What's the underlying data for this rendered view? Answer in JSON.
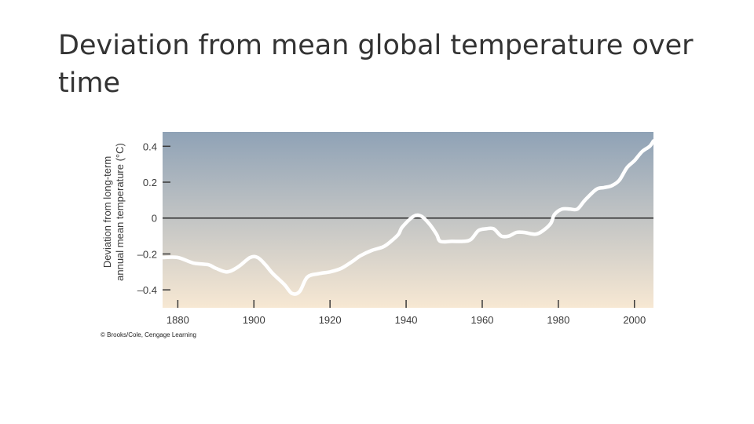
{
  "slide": {
    "title": "Deviation from mean global temperature over time"
  },
  "chart_data": {
    "type": "line",
    "title": "",
    "xlabel": "",
    "ylabel_lines": [
      "Deviation from long-term",
      "annual mean temperature (°C)"
    ],
    "xlim": [
      1876,
      2005
    ],
    "ylim": [
      -0.5,
      0.48
    ],
    "x_ticks": [
      1880,
      1900,
      1920,
      1940,
      1960,
      1980,
      2000
    ],
    "y_ticks": [
      {
        "value": 0.4,
        "label": "0.4"
      },
      {
        "value": 0.2,
        "label": "0.2"
      },
      {
        "value": 0,
        "label": "0"
      },
      {
        "value": -0.2,
        "label": "–0.2"
      },
      {
        "value": -0.4,
        "label": "–0.4"
      }
    ],
    "zero_line": true,
    "grid": false,
    "background_gradient": [
      "#8fa2b6",
      "#f7e8d3"
    ],
    "series": [
      {
        "name": "",
        "color": "#ffffff",
        "points": [
          [
            1876,
            -0.22
          ],
          [
            1880,
            -0.22
          ],
          [
            1884,
            -0.25
          ],
          [
            1888,
            -0.26
          ],
          [
            1890,
            -0.28
          ],
          [
            1893,
            -0.3
          ],
          [
            1896,
            -0.27
          ],
          [
            1899,
            -0.22
          ],
          [
            1901,
            -0.22
          ],
          [
            1903,
            -0.26
          ],
          [
            1905,
            -0.31
          ],
          [
            1908,
            -0.37
          ],
          [
            1910,
            -0.42
          ],
          [
            1912,
            -0.41
          ],
          [
            1914,
            -0.33
          ],
          [
            1917,
            -0.31
          ],
          [
            1920,
            -0.3
          ],
          [
            1923,
            -0.28
          ],
          [
            1926,
            -0.24
          ],
          [
            1928,
            -0.21
          ],
          [
            1931,
            -0.18
          ],
          [
            1934,
            -0.16
          ],
          [
            1936,
            -0.13
          ],
          [
            1938,
            -0.09
          ],
          [
            1939,
            -0.05
          ],
          [
            1942,
            0.01
          ],
          [
            1944,
            0.01
          ],
          [
            1946,
            -0.03
          ],
          [
            1948,
            -0.09
          ],
          [
            1949,
            -0.13
          ],
          [
            1952,
            -0.13
          ],
          [
            1955,
            -0.13
          ],
          [
            1957,
            -0.12
          ],
          [
            1959,
            -0.07
          ],
          [
            1961,
            -0.06
          ],
          [
            1963,
            -0.06
          ],
          [
            1965,
            -0.1
          ],
          [
            1967,
            -0.1
          ],
          [
            1969,
            -0.08
          ],
          [
            1971,
            -0.08
          ],
          [
            1974,
            -0.09
          ],
          [
            1976,
            -0.07
          ],
          [
            1978,
            -0.03
          ],
          [
            1979,
            0.02
          ],
          [
            1981,
            0.05
          ],
          [
            1983,
            0.05
          ],
          [
            1985,
            0.05
          ],
          [
            1987,
            0.1
          ],
          [
            1990,
            0.16
          ],
          [
            1992,
            0.17
          ],
          [
            1994,
            0.18
          ],
          [
            1996,
            0.21
          ],
          [
            1998,
            0.28
          ],
          [
            2000,
            0.32
          ],
          [
            2002,
            0.37
          ],
          [
            2004,
            0.4
          ],
          [
            2005,
            0.43
          ]
        ]
      }
    ],
    "credit": "© Brooks/Cole, Cengage Learning"
  }
}
